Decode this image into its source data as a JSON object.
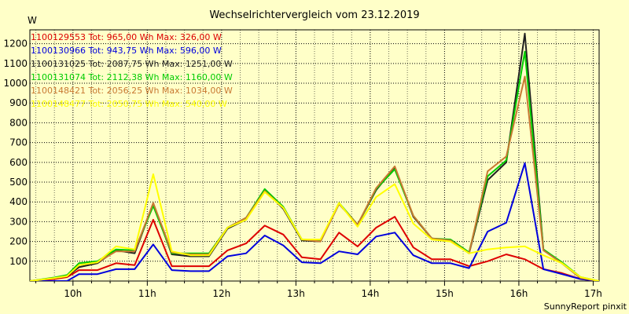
{
  "chart_data": {
    "type": "line",
    "title": "Wechselrichtervergleich vom 23.12.2019",
    "ylabel": "W",
    "footer": "SunnyReport pinxit",
    "ylim": [
      0,
      1270
    ],
    "xlim": [
      9.42,
      17.08
    ],
    "yticks": [
      100,
      200,
      300,
      400,
      500,
      600,
      700,
      800,
      900,
      1000,
      1100,
      1200
    ],
    "xticks": [
      {
        "value": 10,
        "label": "10h"
      },
      {
        "value": 11,
        "label": "11h"
      },
      {
        "value": 12,
        "label": "12h"
      },
      {
        "value": 13,
        "label": "13h"
      },
      {
        "value": 14,
        "label": "14h"
      },
      {
        "value": 15,
        "label": "15h"
      },
      {
        "value": 16,
        "label": "16h"
      },
      {
        "value": 17,
        "label": "17h"
      }
    ],
    "grid": true,
    "x": [
      9.42,
      9.75,
      9.92,
      10.08,
      10.33,
      10.58,
      10.83,
      11.08,
      11.33,
      11.58,
      11.83,
      12.08,
      12.33,
      12.58,
      12.83,
      13.08,
      13.33,
      13.58,
      13.83,
      14.08,
      14.33,
      14.58,
      14.83,
      15.08,
      15.33,
      15.58,
      15.83,
      16.08,
      16.33,
      16.58,
      16.83,
      17.08
    ],
    "series": [
      {
        "name": "1100129553",
        "color": "#dd0000",
        "legend": "1100129553 Tot: 965,00 Wh Max: 326,00 W",
        "values": [
          0,
          10,
          20,
          55,
          55,
          90,
          80,
          310,
          75,
          75,
          75,
          155,
          190,
          280,
          235,
          120,
          110,
          245,
          175,
          270,
          325,
          170,
          110,
          110,
          75,
          100,
          135,
          110,
          60,
          40,
          10,
          0
        ]
      },
      {
        "name": "1100130966",
        "color": "#0000dd",
        "legend": "1100130966 Tot: 943,75 Wh Max: 596,00 W",
        "values": [
          0,
          0,
          0,
          35,
          35,
          60,
          60,
          185,
          55,
          50,
          50,
          125,
          140,
          230,
          180,
          95,
          90,
          150,
          135,
          225,
          245,
          130,
          90,
          90,
          65,
          250,
          295,
          596,
          60,
          35,
          10,
          0
        ]
      },
      {
        "name": "1100131025",
        "color": "#202020",
        "legend": "1100131025 Tot: 2087,75 Wh Max: 1251,00 W",
        "values": [
          0,
          15,
          25,
          70,
          90,
          155,
          140,
          390,
          135,
          125,
          125,
          265,
          310,
          460,
          365,
          205,
          200,
          390,
          285,
          460,
          575,
          325,
          215,
          205,
          140,
          510,
          600,
          1251,
          160,
          90,
          15,
          0
        ]
      },
      {
        "name": "1100131074",
        "color": "#00cc00",
        "legend": "1100131074 Tot: 2112,38 Wh Max: 1160,00 W",
        "values": [
          0,
          18,
          30,
          90,
          100,
          160,
          155,
          380,
          140,
          140,
          140,
          270,
          320,
          465,
          375,
          210,
          205,
          395,
          285,
          465,
          565,
          330,
          215,
          210,
          145,
          530,
          610,
          1160,
          160,
          95,
          20,
          0
        ]
      },
      {
        "name": "1100148421",
        "color": "#c87832",
        "legend": "1100148421 Tot: 2056,25 Wh Max: 1034,00 W",
        "values": [
          0,
          15,
          25,
          80,
          95,
          150,
          150,
          395,
          145,
          135,
          135,
          270,
          320,
          455,
          370,
          210,
          200,
          390,
          285,
          470,
          580,
          330,
          215,
          205,
          140,
          555,
          630,
          1034,
          155,
          90,
          15,
          0
        ]
      },
      {
        "name": "1100148477",
        "color": "#ffff00",
        "legend": "1100148477 Tot: 2050,75 Wh Max: 540,00 W",
        "values": [
          0,
          15,
          25,
          80,
          95,
          175,
          160,
          540,
          150,
          130,
          130,
          270,
          310,
          450,
          370,
          210,
          210,
          395,
          275,
          425,
          490,
          290,
          210,
          200,
          140,
          160,
          170,
          175,
          130,
          90,
          20,
          0
        ]
      }
    ]
  }
}
